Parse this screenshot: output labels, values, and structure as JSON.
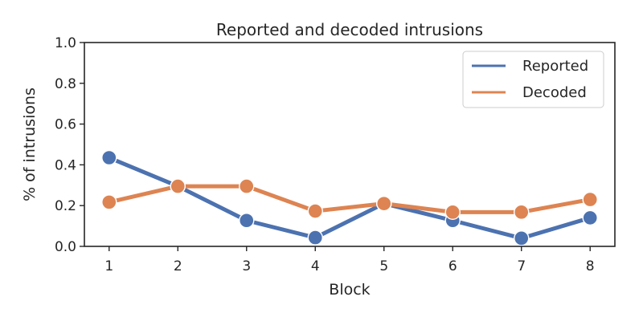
{
  "chart_data": {
    "type": "line",
    "title": "Reported and decoded intrusions",
    "xlabel": "Block",
    "ylabel": "% of intrusions",
    "x": [
      1,
      2,
      3,
      4,
      5,
      6,
      7,
      8
    ],
    "xticks": [
      "1",
      "2",
      "3",
      "4",
      "5",
      "6",
      "7",
      "8"
    ],
    "ylim": [
      0,
      1
    ],
    "yticks": [
      "0.0",
      "0.2",
      "0.4",
      "0.6",
      "0.8",
      "1.0"
    ],
    "grid": false,
    "legend_position": "top-right",
    "series": [
      {
        "name": "Reported",
        "color": "#4c72b0",
        "values": [
          0.435,
          0.295,
          0.127,
          0.043,
          0.21,
          0.127,
          0.04,
          0.14
        ]
      },
      {
        "name": "Decoded",
        "color": "#dd8452",
        "values": [
          0.217,
          0.295,
          0.295,
          0.173,
          0.21,
          0.168,
          0.168,
          0.23
        ]
      }
    ]
  }
}
